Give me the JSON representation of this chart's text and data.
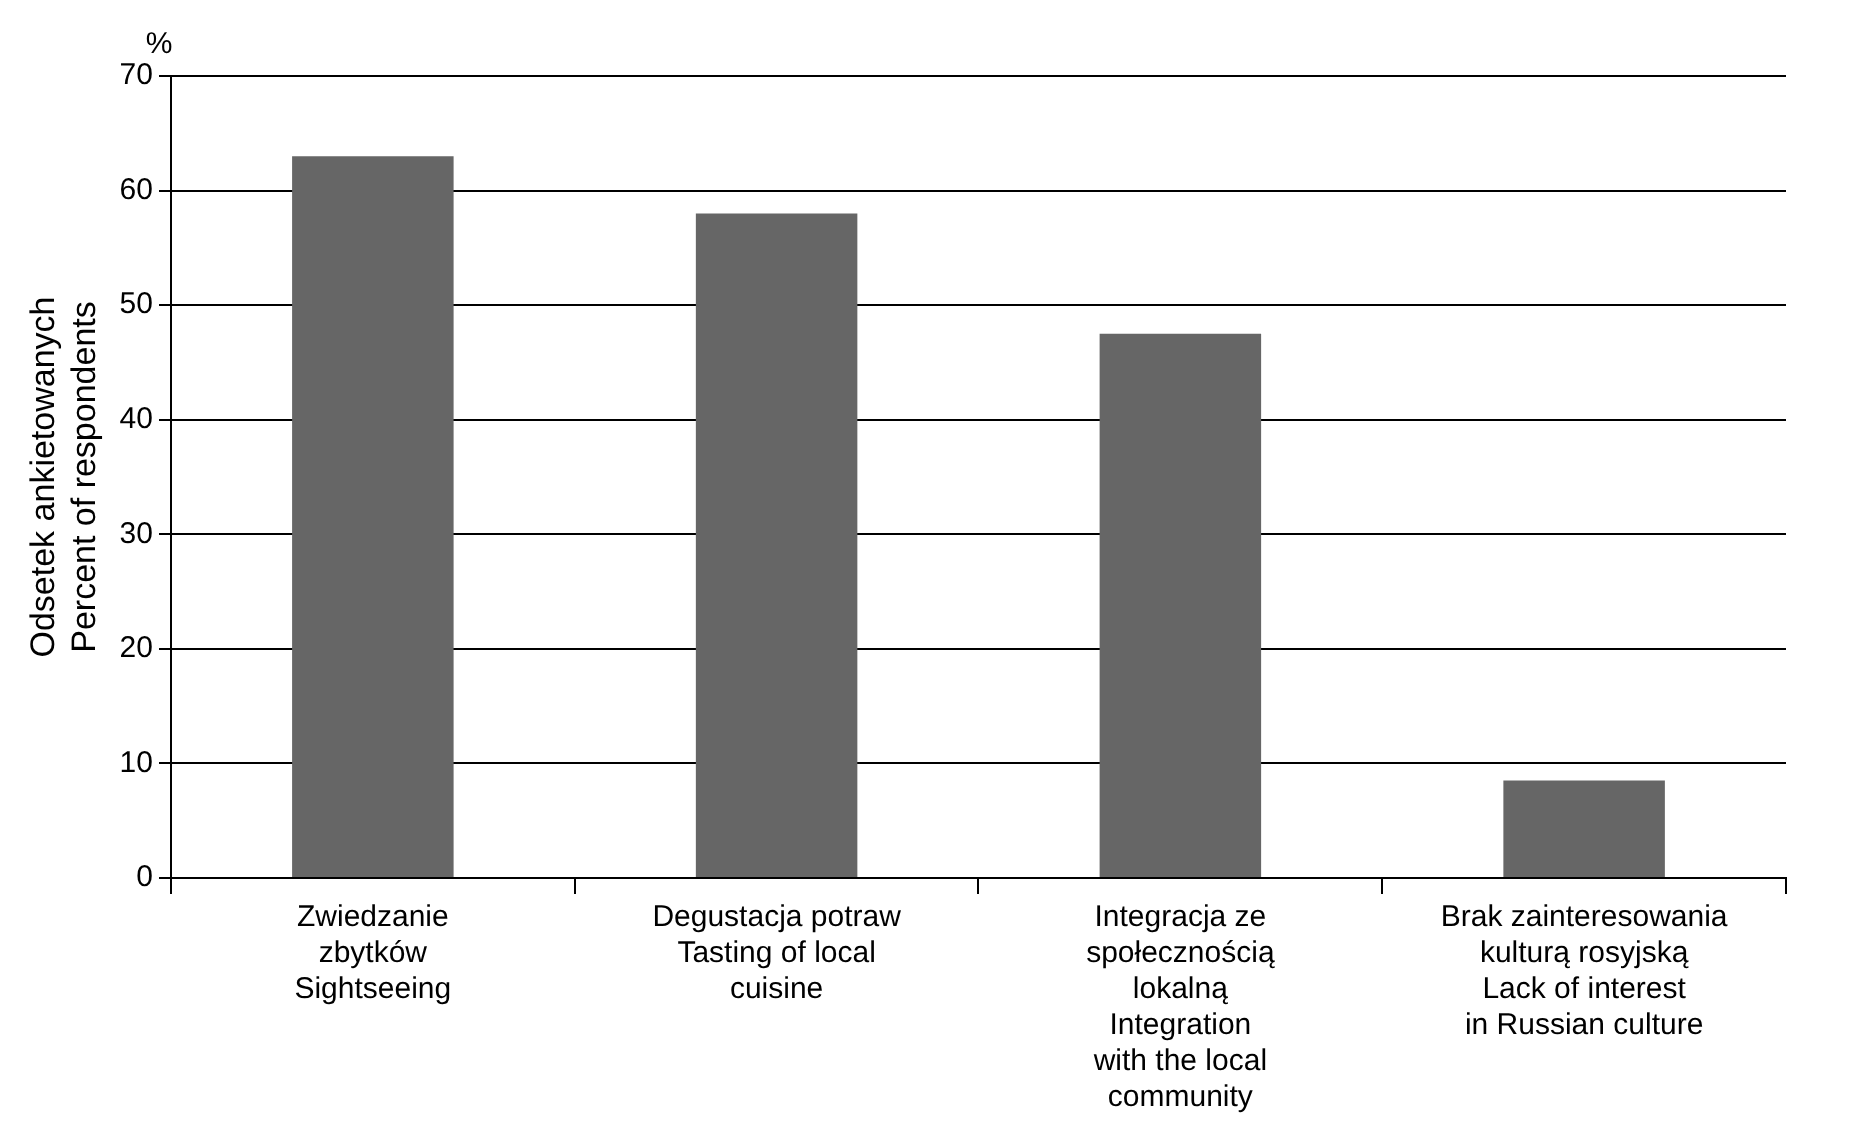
{
  "chart_data": {
    "type": "bar",
    "categories": [
      "Zwiedzanie\nzbytków\nSightseeing",
      "Degustacja potraw\nTasting of local\ncuisine",
      "Integracja ze\nspołecznością\nlokalną\nIntegration\nwith the local\ncommunity",
      "Brak zainteresowania\nkulturą rosyjską\nLack of interest\nin Russian culture"
    ],
    "values": [
      63,
      58,
      47.5,
      8.5
    ],
    "color": "#666666",
    "ylabel": "Odsetek ankietowanych\nPercent of respondents",
    "annotations": [
      "%"
    ],
    "ylim": [
      0,
      70
    ],
    "yticks": [
      0,
      10,
      20,
      30,
      40,
      50,
      60,
      70
    ],
    "grid": "y"
  }
}
